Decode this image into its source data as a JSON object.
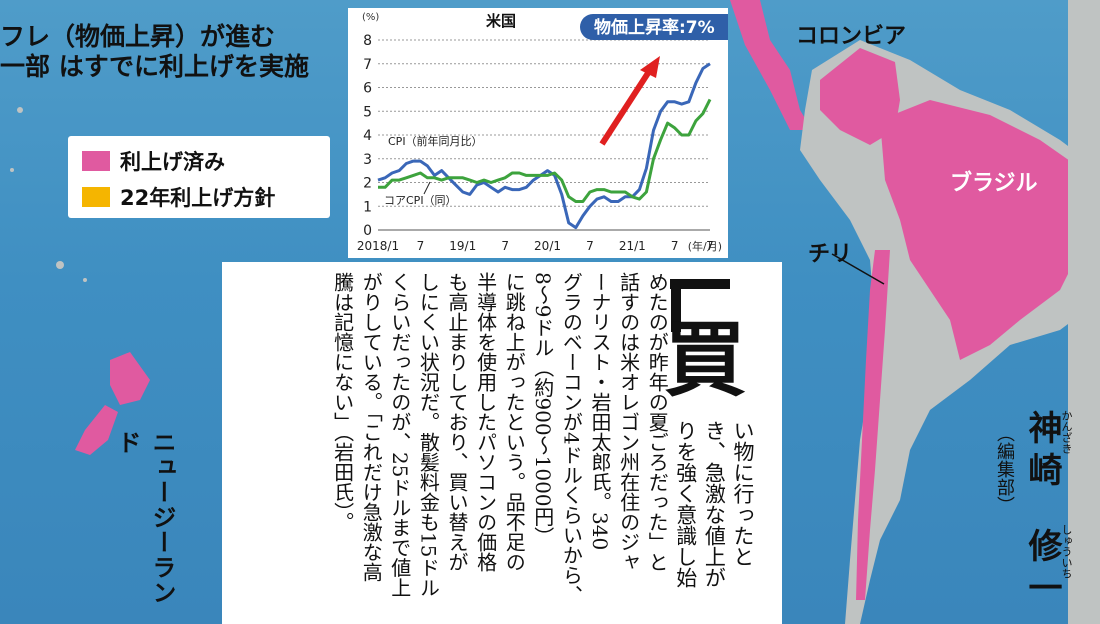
{
  "headline": {
    "line1": "フレ（物価上昇）が進む",
    "line2": "一部 はすでに利上げを実施"
  },
  "legend": {
    "items": [
      {
        "label": "利上げ済み",
        "color": "#e05aa0"
      },
      {
        "label": "22年利上げ方針",
        "color": "#f5b500"
      }
    ]
  },
  "chart": {
    "title": "米国",
    "callout": "物価上昇率:7%",
    "y_unit": "(%)",
    "x_unit": "(年/月)",
    "series_labels": [
      "CPI（前年同月比）",
      "コアCPI（同）"
    ]
  },
  "chart_data": {
    "type": "line",
    "title": "米国",
    "ylabel": "(%)",
    "xlabel": "(年/月)",
    "ylim": [
      0,
      8
    ],
    "yticks": [
      0,
      1,
      2,
      3,
      4,
      5,
      6,
      7,
      8
    ],
    "xtick_labels": [
      "2018/1",
      "7",
      "19/1",
      "7",
      "20/1",
      "7",
      "21/1",
      "7",
      "7"
    ],
    "x_range": [
      0,
      47
    ],
    "series": [
      {
        "name": "CPI（前年同月比）",
        "color": "#3a67b8",
        "values": [
          2.1,
          2.2,
          2.4,
          2.5,
          2.8,
          2.9,
          2.9,
          2.7,
          2.3,
          2.5,
          2.2,
          1.9,
          1.6,
          1.5,
          1.9,
          2.0,
          1.8,
          1.6,
          1.8,
          1.7,
          1.7,
          1.8,
          2.1,
          2.3,
          2.5,
          2.3,
          1.5,
          0.3,
          0.1,
          0.6,
          1.0,
          1.3,
          1.4,
          1.2,
          1.2,
          1.4,
          1.4,
          1.7,
          2.6,
          4.2,
          5.0,
          5.4,
          5.4,
          5.3,
          5.4,
          6.2,
          6.8,
          7.0
        ]
      },
      {
        "name": "コアCPI（同）",
        "color": "#3da33d",
        "values": [
          1.8,
          1.8,
          2.1,
          2.1,
          2.2,
          2.3,
          2.4,
          2.2,
          2.2,
          2.1,
          2.2,
          2.2,
          2.2,
          2.1,
          2.0,
          2.1,
          2.0,
          2.1,
          2.2,
          2.4,
          2.4,
          2.3,
          2.3,
          2.3,
          2.3,
          2.4,
          2.1,
          1.4,
          1.2,
          1.2,
          1.6,
          1.7,
          1.7,
          1.6,
          1.6,
          1.6,
          1.4,
          1.3,
          1.6,
          3.0,
          3.8,
          4.5,
          4.3,
          4.0,
          4.0,
          4.6,
          4.9,
          5.5
        ]
      }
    ]
  },
  "countries": {
    "us": "米国",
    "colombia": "コロンビア",
    "brazil": "ブラジル",
    "chile": "チリ",
    "nz": "ニュージーランド"
  },
  "article": {
    "columns": [
      "い物に行ったと",
      "き、急激な値上が",
      "りを強く意識し始",
      "めたのが昨年の夏ごろだった」と",
      "話すのは米オレゴン州在住のジャ",
      "ーナリスト・岩田太郎氏。340",
      "グラのベーコンが4ドルくらいから、",
      "8〜9ドル（約900〜1000円）",
      "に跳ね上がったという。品不足の",
      "半導体を使用したパソコンの価格",
      "も高止まりしており、買い替えが",
      "しにくい状況だ。散髪料金も15ドル",
      "くらいだったのが、25ドルまで値上",
      "がりしている。「これだけ急激な高",
      "騰は記憶にない」（岩田氏）。"
    ],
    "big_bracket": "「",
    "big_char": "買"
  },
  "author": {
    "department": "（編集部）",
    "surname": "神崎",
    "given": "修一",
    "surname_ruby": "かんざき",
    "given_ruby": "しゅういち"
  }
}
